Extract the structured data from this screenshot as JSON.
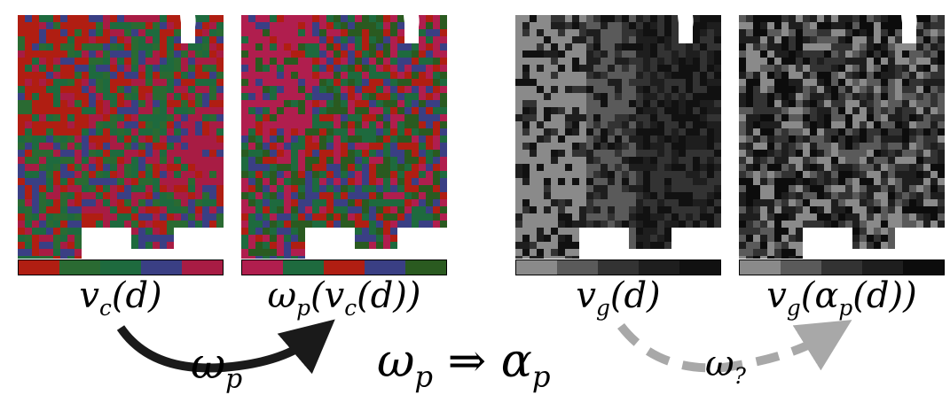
{
  "panels": [
    {
      "id": "vc",
      "label": "v_c(d)",
      "caption": "vc(d)",
      "palette": [
        "#b01e12",
        "#1e6a3e",
        "#3a3f84",
        "#a81c44",
        "#2a6a32"
      ],
      "ramp": [
        "#b01e12",
        "#2a6a32",
        "#1e6a3e",
        "#3a3f84",
        "#a81c44"
      ]
    },
    {
      "id": "wpvc",
      "label": "ω_p(v_c(d))",
      "caption": "ωp(vc(d))",
      "palette": [
        "#b01e4e",
        "#1e6a3e",
        "#b01e12",
        "#3a3f84",
        "#2a5a20"
      ],
      "ramp": [
        "#b01e4e",
        "#1e6a3e",
        "#b01e12",
        "#3a3f84",
        "#2a5a20"
      ]
    },
    {
      "id": "vg",
      "label": "v_g(d)",
      "caption": "vg(d)",
      "palette": [
        "#8a8a8a",
        "#5a5a5a",
        "#333333",
        "#1e1e1e",
        "#111111"
      ],
      "ramp": [
        "#8a8a8a",
        "#5a5a5a",
        "#333333",
        "#1e1e1e",
        "#111111"
      ]
    },
    {
      "id": "vgap",
      "label": "v_g(α_p(d))",
      "caption": "vg(αp(d))",
      "palette": [
        "#8a8a8a",
        "#5a5a5a",
        "#333333",
        "#1e1e1e",
        "#0c0c0c"
      ],
      "ramp": [
        "#8a8a8a",
        "#5a5a5a",
        "#333333",
        "#1e1e1e",
        "#0c0c0c"
      ]
    }
  ],
  "arrows": {
    "left": {
      "label": "ωp",
      "color": "#1a1a1a",
      "style": "solid"
    },
    "right": {
      "label": "ω?",
      "color": "#a8a8a8",
      "style": "dashed"
    }
  },
  "implication": "ωp ⇒ αp"
}
